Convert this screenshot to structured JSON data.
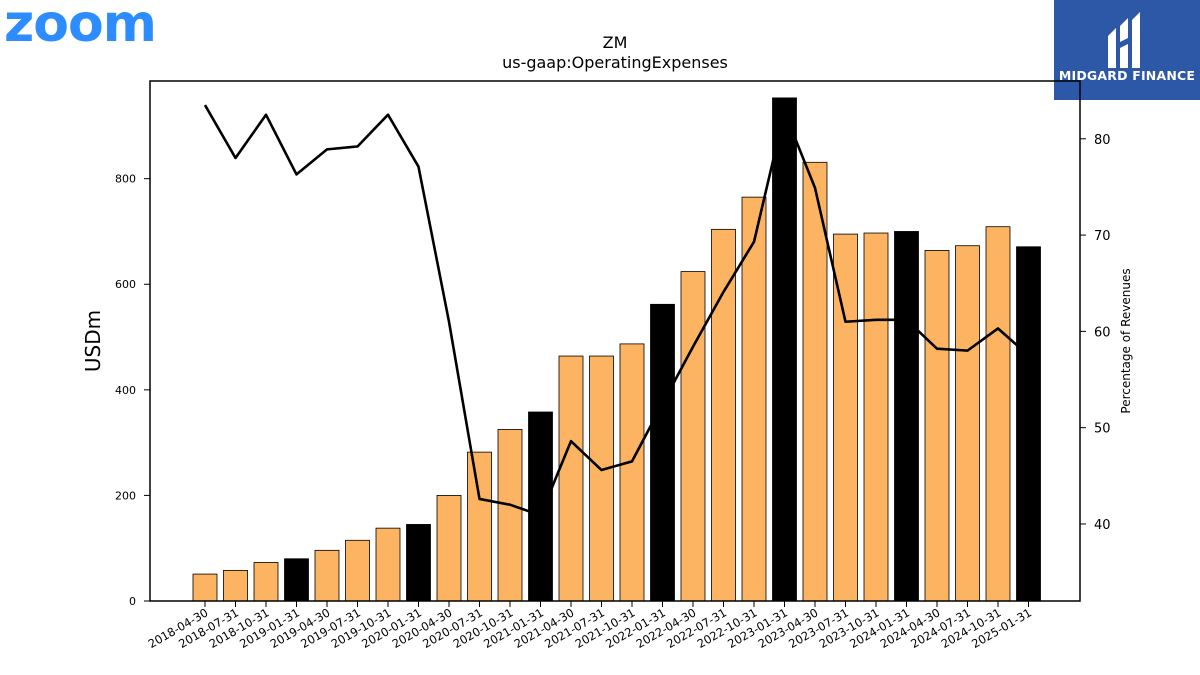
{
  "logos": {
    "zoom_text": "zoom",
    "zoom_color": "#2d8cff",
    "midgard_text": "MIDGARD FINANCE",
    "midgard_bg": "#2d57a7"
  },
  "colors": {
    "bar_default": "#fdb462",
    "bar_highlight": "#000000",
    "line": "#000000"
  },
  "chart_data": {
    "type": "bar",
    "title": "ZM",
    "subtitle": "us-gaap:OperatingExpenses",
    "ylabel": "USDm",
    "y2label": "Percentage of Revenues",
    "ylim": [
      0,
      985
    ],
    "y2lim": [
      32,
      86
    ],
    "yticks": [
      0,
      200,
      400,
      600,
      800
    ],
    "y2ticks": [
      40,
      50,
      60,
      70,
      80
    ],
    "grid": false,
    "categories": [
      "2018-04-30",
      "2018-07-31",
      "2018-10-31",
      "2019-01-31",
      "2019-04-30",
      "2019-07-31",
      "2019-10-31",
      "2020-01-31",
      "2020-04-30",
      "2020-07-31",
      "2020-10-31",
      "2021-01-31",
      "2021-04-30",
      "2021-07-31",
      "2021-10-31",
      "2022-01-31",
      "2022-04-30",
      "2022-07-31",
      "2022-10-31",
      "2023-01-31",
      "2023-04-30",
      "2023-07-31",
      "2023-10-31",
      "2024-01-31",
      "2024-04-30",
      "2024-07-31",
      "2024-10-31",
      "2025-01-31"
    ],
    "series": [
      {
        "kind": "bar",
        "values": [
          51,
          58,
          73,
          80,
          96,
          115,
          138,
          145,
          200,
          282,
          325,
          358,
          464,
          464,
          487,
          562,
          624,
          704,
          765,
          953,
          831,
          695,
          697,
          700,
          664,
          673,
          709,
          671
        ],
        "highlight": [
          false,
          false,
          false,
          true,
          false,
          false,
          false,
          true,
          false,
          false,
          false,
          true,
          false,
          false,
          false,
          true,
          false,
          false,
          false,
          true,
          false,
          false,
          false,
          true,
          false,
          false,
          false,
          true
        ]
      },
      {
        "kind": "line",
        "axis": "right",
        "values": [
          83.5,
          78.0,
          82.5,
          76.3,
          78.9,
          79.2,
          82.5,
          77.1,
          61.0,
          42.6,
          42.0,
          40.9,
          48.6,
          45.6,
          46.5,
          52.5,
          58.4,
          64.1,
          69.3,
          82.8,
          74.9,
          61.0,
          61.2,
          61.2,
          58.2,
          58.0,
          60.3,
          57.5
        ]
      }
    ]
  }
}
